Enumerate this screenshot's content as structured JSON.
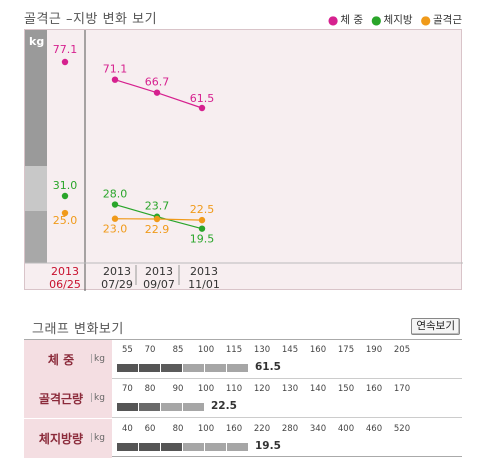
{
  "header": {
    "title": "골격근 –지방 변화 보기",
    "legend": [
      {
        "label": "체  중",
        "color": "#d6218f"
      },
      {
        "label": "체지방",
        "color": "#2aa52a"
      },
      {
        "label": "골격근",
        "color": "#f09a1a"
      }
    ]
  },
  "chart_data": {
    "type": "line",
    "unit_label": "kg",
    "x_dates": [
      {
        "year": "2013",
        "md": "06/25"
      },
      {
        "year": "2013",
        "md": "07/29"
      },
      {
        "year": "2013",
        "md": "09/07"
      },
      {
        "year": "2013",
        "md": "11/01"
      }
    ],
    "series": [
      {
        "name": "체  중",
        "color": "#d6218f",
        "values": [
          77.1,
          71.1,
          66.7,
          61.5
        ],
        "labels": [
          "77.1",
          "71.1",
          "66.7",
          "61.5"
        ]
      },
      {
        "name": "체지방",
        "color": "#2aa52a",
        "values": [
          31.0,
          28.0,
          23.7,
          19.5
        ],
        "labels": [
          "31.0",
          "28.0",
          "23.7",
          "19.5"
        ]
      },
      {
        "name": "골격근",
        "color": "#f09a1a",
        "values": [
          25.0,
          23.0,
          22.9,
          22.5
        ],
        "labels": [
          "25.0",
          "23.0",
          "22.9",
          "22.5"
        ]
      }
    ]
  },
  "section2": {
    "title": "그래프 변화보기",
    "slideshow_label": "연속보기",
    "rows": [
      {
        "label": "체  중",
        "unit": "kg",
        "ticks": [
          "55",
          "70",
          "85",
          "100",
          "115",
          "130",
          "145",
          "160",
          "175",
          "190",
          "205"
        ],
        "value": 61.5,
        "value_label": "61.5"
      },
      {
        "label": "골격근량",
        "unit": "kg",
        "ticks": [
          "70",
          "80",
          "90",
          "100",
          "110",
          "120",
          "130",
          "140",
          "150",
          "160",
          "170"
        ],
        "value": 22.5,
        "value_label": "22.5"
      },
      {
        "label": "체지방량",
        "unit": "kg",
        "ticks": [
          "40",
          "60",
          "80",
          "100",
          "160",
          "220",
          "280",
          "340",
          "400",
          "460",
          "520"
        ],
        "value": 19.5,
        "value_label": "19.5"
      }
    ]
  }
}
